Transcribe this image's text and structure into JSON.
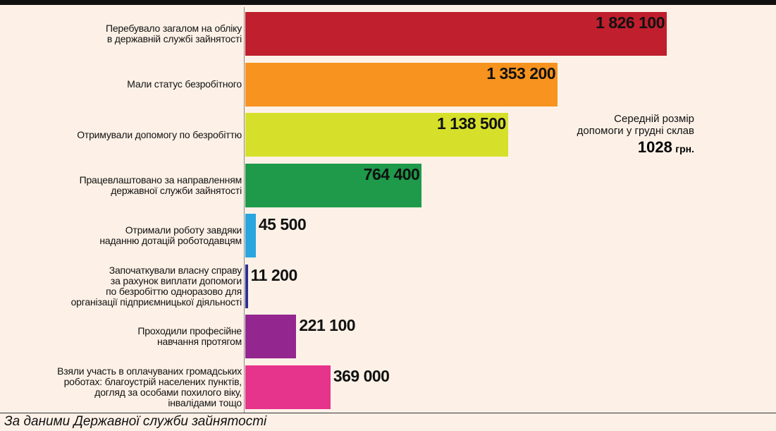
{
  "chart_data": {
    "type": "bar",
    "orientation": "horizontal",
    "categories": [
      "Перебувало загалом на обліку\nв державній службі зайнятості",
      "Мали статус безробітного",
      "Отримували допомогу по безробіттю",
      "Працевлаштовано за направленням\nдержавної служби зайнятості",
      "Отримали роботу завдяки\nнаданню дотацій роботодавцям",
      "Започаткували власну справу\nза рахунок виплати допомоги\nпо безробіттю одноразово для\nорганізації підприємницької діяльності",
      "Проходили професійне\nнавчання протягом",
      "Взяли участь в оплачуваних громадських\nроботах: благоустрій населених пунктів,\nдогляд  за особами похилого віку,\nінвалідами тощо"
    ],
    "values": [
      1826100,
      1353200,
      1138500,
      764400,
      45500,
      11200,
      221100,
      369000
    ],
    "value_labels": [
      "1 826 100",
      "1 353 200",
      "1 138 500",
      "764 400",
      "45 500",
      "11 200",
      "221 100",
      "369 000"
    ],
    "colors": [
      "#c01f2e",
      "#f7931e",
      "#d6e02a",
      "#1e9a4a",
      "#2aa6df",
      "#2e3192",
      "#93278f",
      "#e6338b"
    ],
    "annotation": {
      "text": "Середній розмір\nдопомоги у грудні склав",
      "value": "1028",
      "unit": "грн."
    },
    "source": "За даними Державної служби зайнятості"
  }
}
